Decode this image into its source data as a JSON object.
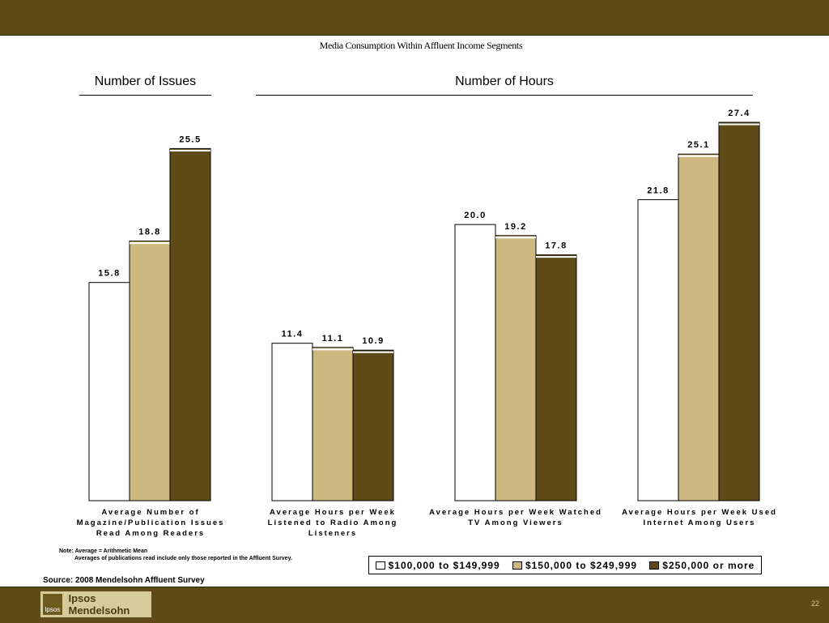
{
  "slide": {
    "title": "Media Consumption Within Affluent Income Segments",
    "page_number": "22",
    "note_line1": "Note: Average = Arithmetic Mean",
    "note_line2": "Averages of publications read include only those reported in the Affluent Survey.",
    "source": "Source: 2008 Mendelsohn Affluent Survey",
    "logo_text": "Ipsos Mendelsohn",
    "logo_mark": "Ipsos"
  },
  "sections": [
    {
      "label": "Number of Issues"
    },
    {
      "label": "Number of Hours"
    }
  ],
  "chart_data": {
    "type": "bar",
    "title": "Media Consumption Within Affluent Income Segments",
    "categories": [
      "Average Number of Magazine/Publication Issues Read Among Readers",
      "Average Hours per Week Listened to Radio Among Listeners",
      "Average Hours per Week Watched TV Among Viewers",
      "Average Hours per Week Used Internet Among Users"
    ],
    "series": [
      {
        "name": "$100,000 to $149,999",
        "color": "#ffffff",
        "values": [
          15.8,
          11.4,
          20.0,
          21.8
        ],
        "labels": [
          "15.8",
          "11.4",
          "20.0",
          "21.8"
        ]
      },
      {
        "name": "$150,000 to $249,999",
        "color": "#cdb87f",
        "values": [
          18.8,
          11.1,
          19.2,
          25.1
        ],
        "labels": [
          "18.8",
          "11.1",
          "19.2",
          "25.1"
        ]
      },
      {
        "name": "$250,000 or more",
        "color": "#5e4b17",
        "values": [
          25.5,
          10.9,
          17.8,
          27.4
        ],
        "labels": [
          "25.5",
          "10.9",
          "17.8",
          "27.4"
        ]
      }
    ],
    "ylim": [
      0,
      27.4
    ],
    "grid": false,
    "legend": "bottom-right"
  }
}
